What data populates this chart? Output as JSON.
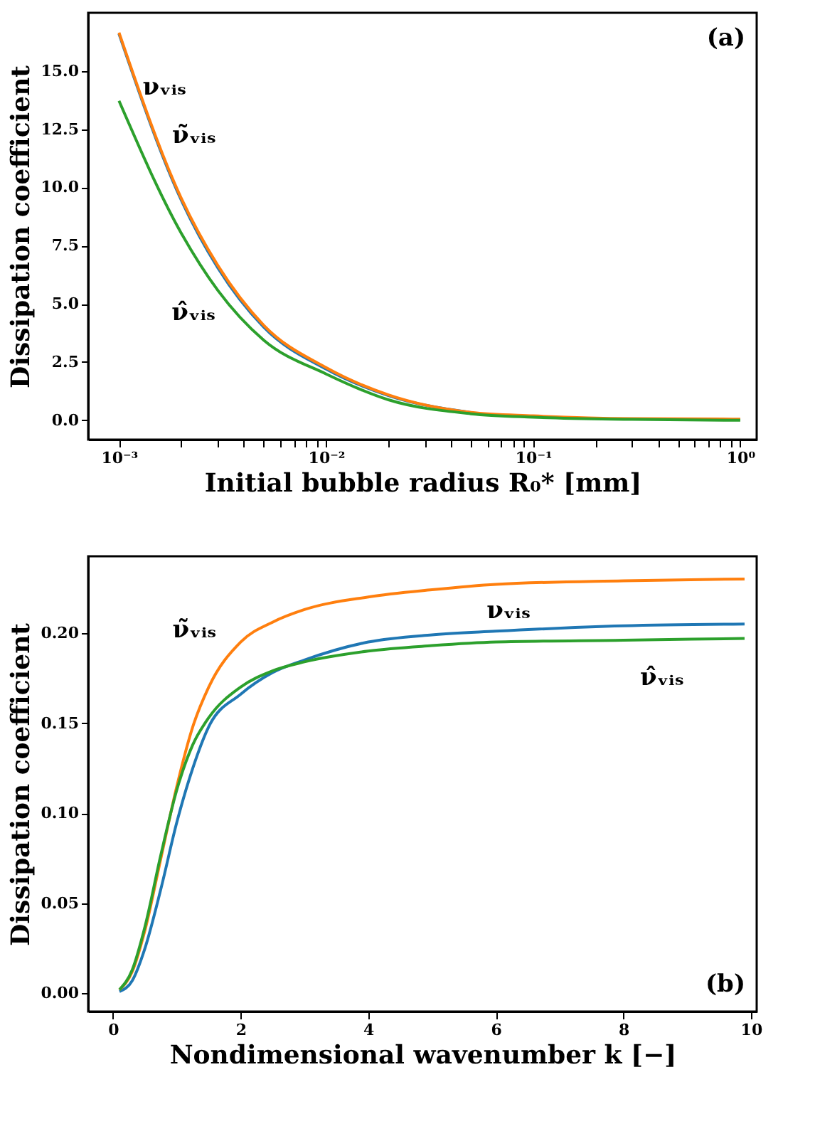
{
  "chart_data": [
    {
      "type": "line",
      "xlabel": "Initial bubble radius R₀* [mm]",
      "ylabel": "Dissipation coefficient",
      "log": "x",
      "grid": false,
      "x": [
        0.001,
        0.002,
        0.003,
        0.005,
        0.01,
        0.02,
        0.05,
        0.1,
        0.3,
        1.0
      ],
      "series": [
        {
          "name": "νᵥᵢₛ",
          "color": "#1f77b4",
          "values": [
            16.6,
            9.45,
            6.55,
            4.0,
            2.2,
            1.06,
            0.33,
            null,
            null,
            null
          ]
        },
        {
          "name": "ν̃ᵥᵢₛ",
          "color": "#ff7f0e",
          "values": [
            16.65,
            9.53,
            6.65,
            4.08,
            2.26,
            1.09,
            0.34,
            0.19,
            0.07,
            0.05
          ]
        },
        {
          "name": "ν̂ᵥᵢₛ",
          "color": "#2ca02c",
          "values": [
            13.72,
            8.03,
            5.58,
            3.44,
            1.99,
            0.88,
            0.28,
            0.13,
            0.04,
            0.0
          ]
        }
      ],
      "xlim": [
        0.00071,
        1.2
      ],
      "ylim": [
        -0.83,
        17.5
      ],
      "xticks": [
        {
          "value": 0.001,
          "label": "10⁻³"
        },
        {
          "value": 0.002,
          "label": null
        },
        {
          "value": 0.003,
          "label": null
        },
        {
          "value": 0.004,
          "label": null
        },
        {
          "value": 0.005,
          "label": null
        },
        {
          "value": 0.006,
          "label": null
        },
        {
          "value": 0.007,
          "label": null
        },
        {
          "value": 0.008,
          "label": null
        },
        {
          "value": 0.009,
          "label": null
        },
        {
          "value": 0.01,
          "label": "10⁻²"
        },
        {
          "value": 0.02,
          "label": null
        },
        {
          "value": 0.03,
          "label": null
        },
        {
          "value": 0.04,
          "label": null
        },
        {
          "value": 0.05,
          "label": null
        },
        {
          "value": 0.06,
          "label": null
        },
        {
          "value": 0.07,
          "label": null
        },
        {
          "value": 0.08,
          "label": null
        },
        {
          "value": 0.09,
          "label": null
        },
        {
          "value": 0.1,
          "label": "10⁻¹"
        },
        {
          "value": 0.2,
          "label": null
        },
        {
          "value": 0.3,
          "label": null
        },
        {
          "value": 0.4,
          "label": null
        },
        {
          "value": 0.5,
          "label": null
        },
        {
          "value": 0.6,
          "label": null
        },
        {
          "value": 0.7,
          "label": null
        },
        {
          "value": 0.8,
          "label": null
        },
        {
          "value": 0.9,
          "label": null
        },
        {
          "value": 1,
          "label": "10⁰"
        }
      ],
      "yticks": [
        {
          "value": 0,
          "label": "0.0"
        },
        {
          "value": 2.5,
          "label": "2.5"
        },
        {
          "value": 5,
          "label": "5.0"
        },
        {
          "value": 7.5,
          "label": "7.5"
        },
        {
          "value": 10,
          "label": "10.0"
        },
        {
          "value": 12.5,
          "label": "12.5"
        },
        {
          "value": 15,
          "label": "15.0"
        }
      ],
      "annotations": [
        "(a)"
      ]
    },
    {
      "type": "line",
      "xlabel": "Nondimensional wavenumber k [−]",
      "ylabel": "Dissipation coefficient",
      "grid": false,
      "x": [
        0.1,
        0.3,
        0.5,
        0.75,
        1.0,
        1.25,
        1.5,
        2.0,
        2.5,
        3.0,
        4.0,
        5.0,
        6.0,
        8.0,
        9.9
      ],
      "series": [
        {
          "name": "νᵥᵢₛ",
          "color": "#1f77b4",
          "values": [
            0.001,
            0.007,
            0.025,
            0.058,
            0.095,
            0.125,
            0.148,
            0.166,
            0.178,
            0.185,
            0.195,
            0.199,
            0.201,
            0.204,
            0.205
          ]
        },
        {
          "name": "ν̃ᵥᵢₛ",
          "color": "#ff7f0e",
          "values": [
            0.002,
            0.012,
            0.035,
            0.075,
            0.115,
            0.148,
            0.17,
            0.195,
            0.206,
            0.213,
            0.22,
            0.224,
            0.227,
            0.229,
            0.23
          ]
        },
        {
          "name": "ν̂ᵥᵢₛ",
          "color": "#2ca02c",
          "values": [
            0.002,
            0.013,
            0.037,
            0.077,
            0.113,
            0.138,
            0.153,
            0.17,
            0.179,
            0.184,
            0.19,
            0.193,
            0.195,
            0.196,
            0.197
          ]
        }
      ],
      "xlim": [
        -0.39,
        10.09
      ],
      "ylim": [
        -0.0101,
        0.2426
      ],
      "xticks": [
        0,
        2,
        4,
        6,
        8,
        10
      ],
      "yticks": [
        {
          "value": 0,
          "label": "0.00"
        },
        {
          "value": 0.05,
          "label": "0.05"
        },
        {
          "value": 0.1,
          "label": "0.10"
        },
        {
          "value": 0.15,
          "label": "0.15"
        },
        {
          "value": 0.2,
          "label": "0.20"
        }
      ],
      "annotations": [
        "(b)"
      ]
    }
  ]
}
